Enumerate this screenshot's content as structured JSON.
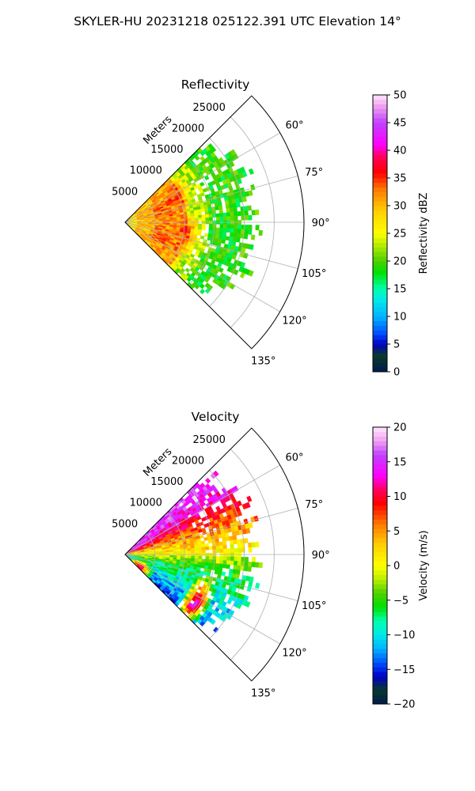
{
  "suptitle": "SKYLER-HU  20231218  025122.391 UTC Elevation 14°",
  "colors": {
    "grid": "#b0b0b0",
    "frame": "#000000",
    "background": "#ffffff"
  },
  "chart_data": [
    {
      "type": "heatmap",
      "subtype": "polar-sector",
      "title": "Reflectivity",
      "radial_label": "Meters",
      "radial_ticks": [
        "5000",
        "10000",
        "15000",
        "20000",
        "25000"
      ],
      "radial_tick_values": [
        5000,
        10000,
        15000,
        20000,
        25000
      ],
      "rlim": [
        0,
        30000
      ],
      "angle_ticks": [
        "60°",
        "75°",
        "90°",
        "105°",
        "120°",
        "135°"
      ],
      "angle_tick_values": [
        60,
        75,
        90,
        105,
        120,
        135
      ],
      "thetalim": [
        45,
        135
      ],
      "grid": true,
      "colorbar": {
        "label": "Reflectivity dBZ",
        "range": [
          0,
          50
        ],
        "ticks": [
          "0",
          "5",
          "10",
          "15",
          "20",
          "25",
          "30",
          "35",
          "40",
          "45",
          "50"
        ],
        "tick_values": [
          0,
          5,
          10,
          15,
          20,
          25,
          30,
          35,
          40,
          45,
          50
        ],
        "stops": [
          [
            0,
            "#001a4d"
          ],
          [
            3,
            "#0a3a2a"
          ],
          [
            5,
            "#0000c8"
          ],
          [
            7,
            "#0050ff"
          ],
          [
            10,
            "#00b4ff"
          ],
          [
            13,
            "#00e8e8"
          ],
          [
            15,
            "#00ffb0"
          ],
          [
            18,
            "#00e000"
          ],
          [
            20,
            "#4cd000"
          ],
          [
            23,
            "#b8ee00"
          ],
          [
            25,
            "#ffff00"
          ],
          [
            29,
            "#ffd000"
          ],
          [
            33,
            "#ff7800"
          ],
          [
            36,
            "#ff0000"
          ],
          [
            39,
            "#ff0060"
          ],
          [
            41,
            "#ff00ff"
          ],
          [
            45,
            "#c040ff"
          ],
          [
            48,
            "#f0a0f0"
          ],
          [
            50,
            "#ffe6ff"
          ]
        ]
      },
      "field": {
        "max_range_m": 20500,
        "range_bands": [
          {
            "to_m": 2000,
            "value": 27
          },
          {
            "to_m": 10000,
            "value": 30
          },
          {
            "to_m": 14000,
            "value": 23
          },
          {
            "to_m": 20500,
            "value": 19
          }
        ],
        "patches": [
          {
            "theta": 62,
            "r_m": 9500,
            "value": 36
          },
          {
            "theta": 70,
            "r_m": 6000,
            "value": 35
          },
          {
            "theta": 100,
            "r_m": 10000,
            "value": 36
          },
          {
            "theta": 112,
            "r_m": 6000,
            "value": 35
          },
          {
            "theta": 118,
            "r_m": 9000,
            "value": 33
          },
          {
            "theta": 85,
            "r_m": 7000,
            "value": 33
          }
        ]
      }
    },
    {
      "type": "heatmap",
      "subtype": "polar-sector",
      "title": "Velocity",
      "radial_label": "Meters",
      "radial_ticks": [
        "5000",
        "10000",
        "15000",
        "20000",
        "25000"
      ],
      "radial_tick_values": [
        5000,
        10000,
        15000,
        20000,
        25000
      ],
      "rlim": [
        0,
        30000
      ],
      "angle_ticks": [
        "60°",
        "75°",
        "90°",
        "105°",
        "120°",
        "135°"
      ],
      "angle_tick_values": [
        60,
        75,
        90,
        105,
        120,
        135
      ],
      "thetalim": [
        45,
        135
      ],
      "grid": true,
      "colorbar": {
        "label": "Velocity (m/s)",
        "range": [
          -20,
          20
        ],
        "ticks": [
          "−20",
          "−15",
          "−10",
          "−5",
          "0",
          "5",
          "10",
          "15",
          "20"
        ],
        "tick_values": [
          -20,
          -15,
          -10,
          -5,
          0,
          5,
          10,
          15,
          20
        ],
        "stops": [
          [
            -20,
            "#001a4d"
          ],
          [
            -18,
            "#0a3a2a"
          ],
          [
            -16,
            "#0000c8"
          ],
          [
            -14,
            "#0050ff"
          ],
          [
            -12,
            "#00b4ff"
          ],
          [
            -10,
            "#00e8e8"
          ],
          [
            -8,
            "#00ffb0"
          ],
          [
            -6,
            "#00e000"
          ],
          [
            -4,
            "#4cd000"
          ],
          [
            -2,
            "#b8ee00"
          ],
          [
            0,
            "#ffff00"
          ],
          [
            3,
            "#ffd000"
          ],
          [
            6,
            "#ff7800"
          ],
          [
            9,
            "#ff0000"
          ],
          [
            11,
            "#ff0060"
          ],
          [
            13,
            "#ff00ff"
          ],
          [
            16,
            "#c040ff"
          ],
          [
            18,
            "#f0a0f0"
          ],
          [
            20,
            "#ffe6ff"
          ]
        ]
      },
      "field": {
        "max_range_m": 20500,
        "angle_gradient": [
          [
            50,
            15
          ],
          [
            60,
            13
          ],
          [
            68,
            8
          ],
          [
            76,
            5
          ],
          [
            84,
            2
          ],
          [
            90,
            0
          ],
          [
            95,
            -3
          ],
          [
            102,
            -6
          ],
          [
            110,
            -8
          ],
          [
            118,
            -10
          ],
          [
            126,
            -12
          ],
          [
            134,
            -14
          ]
        ],
        "patches": [
          {
            "theta": 125,
            "r_m": 14000,
            "value": 17
          },
          {
            "theta": 130,
            "r_m": 3000,
            "value": 16
          }
        ]
      }
    }
  ]
}
